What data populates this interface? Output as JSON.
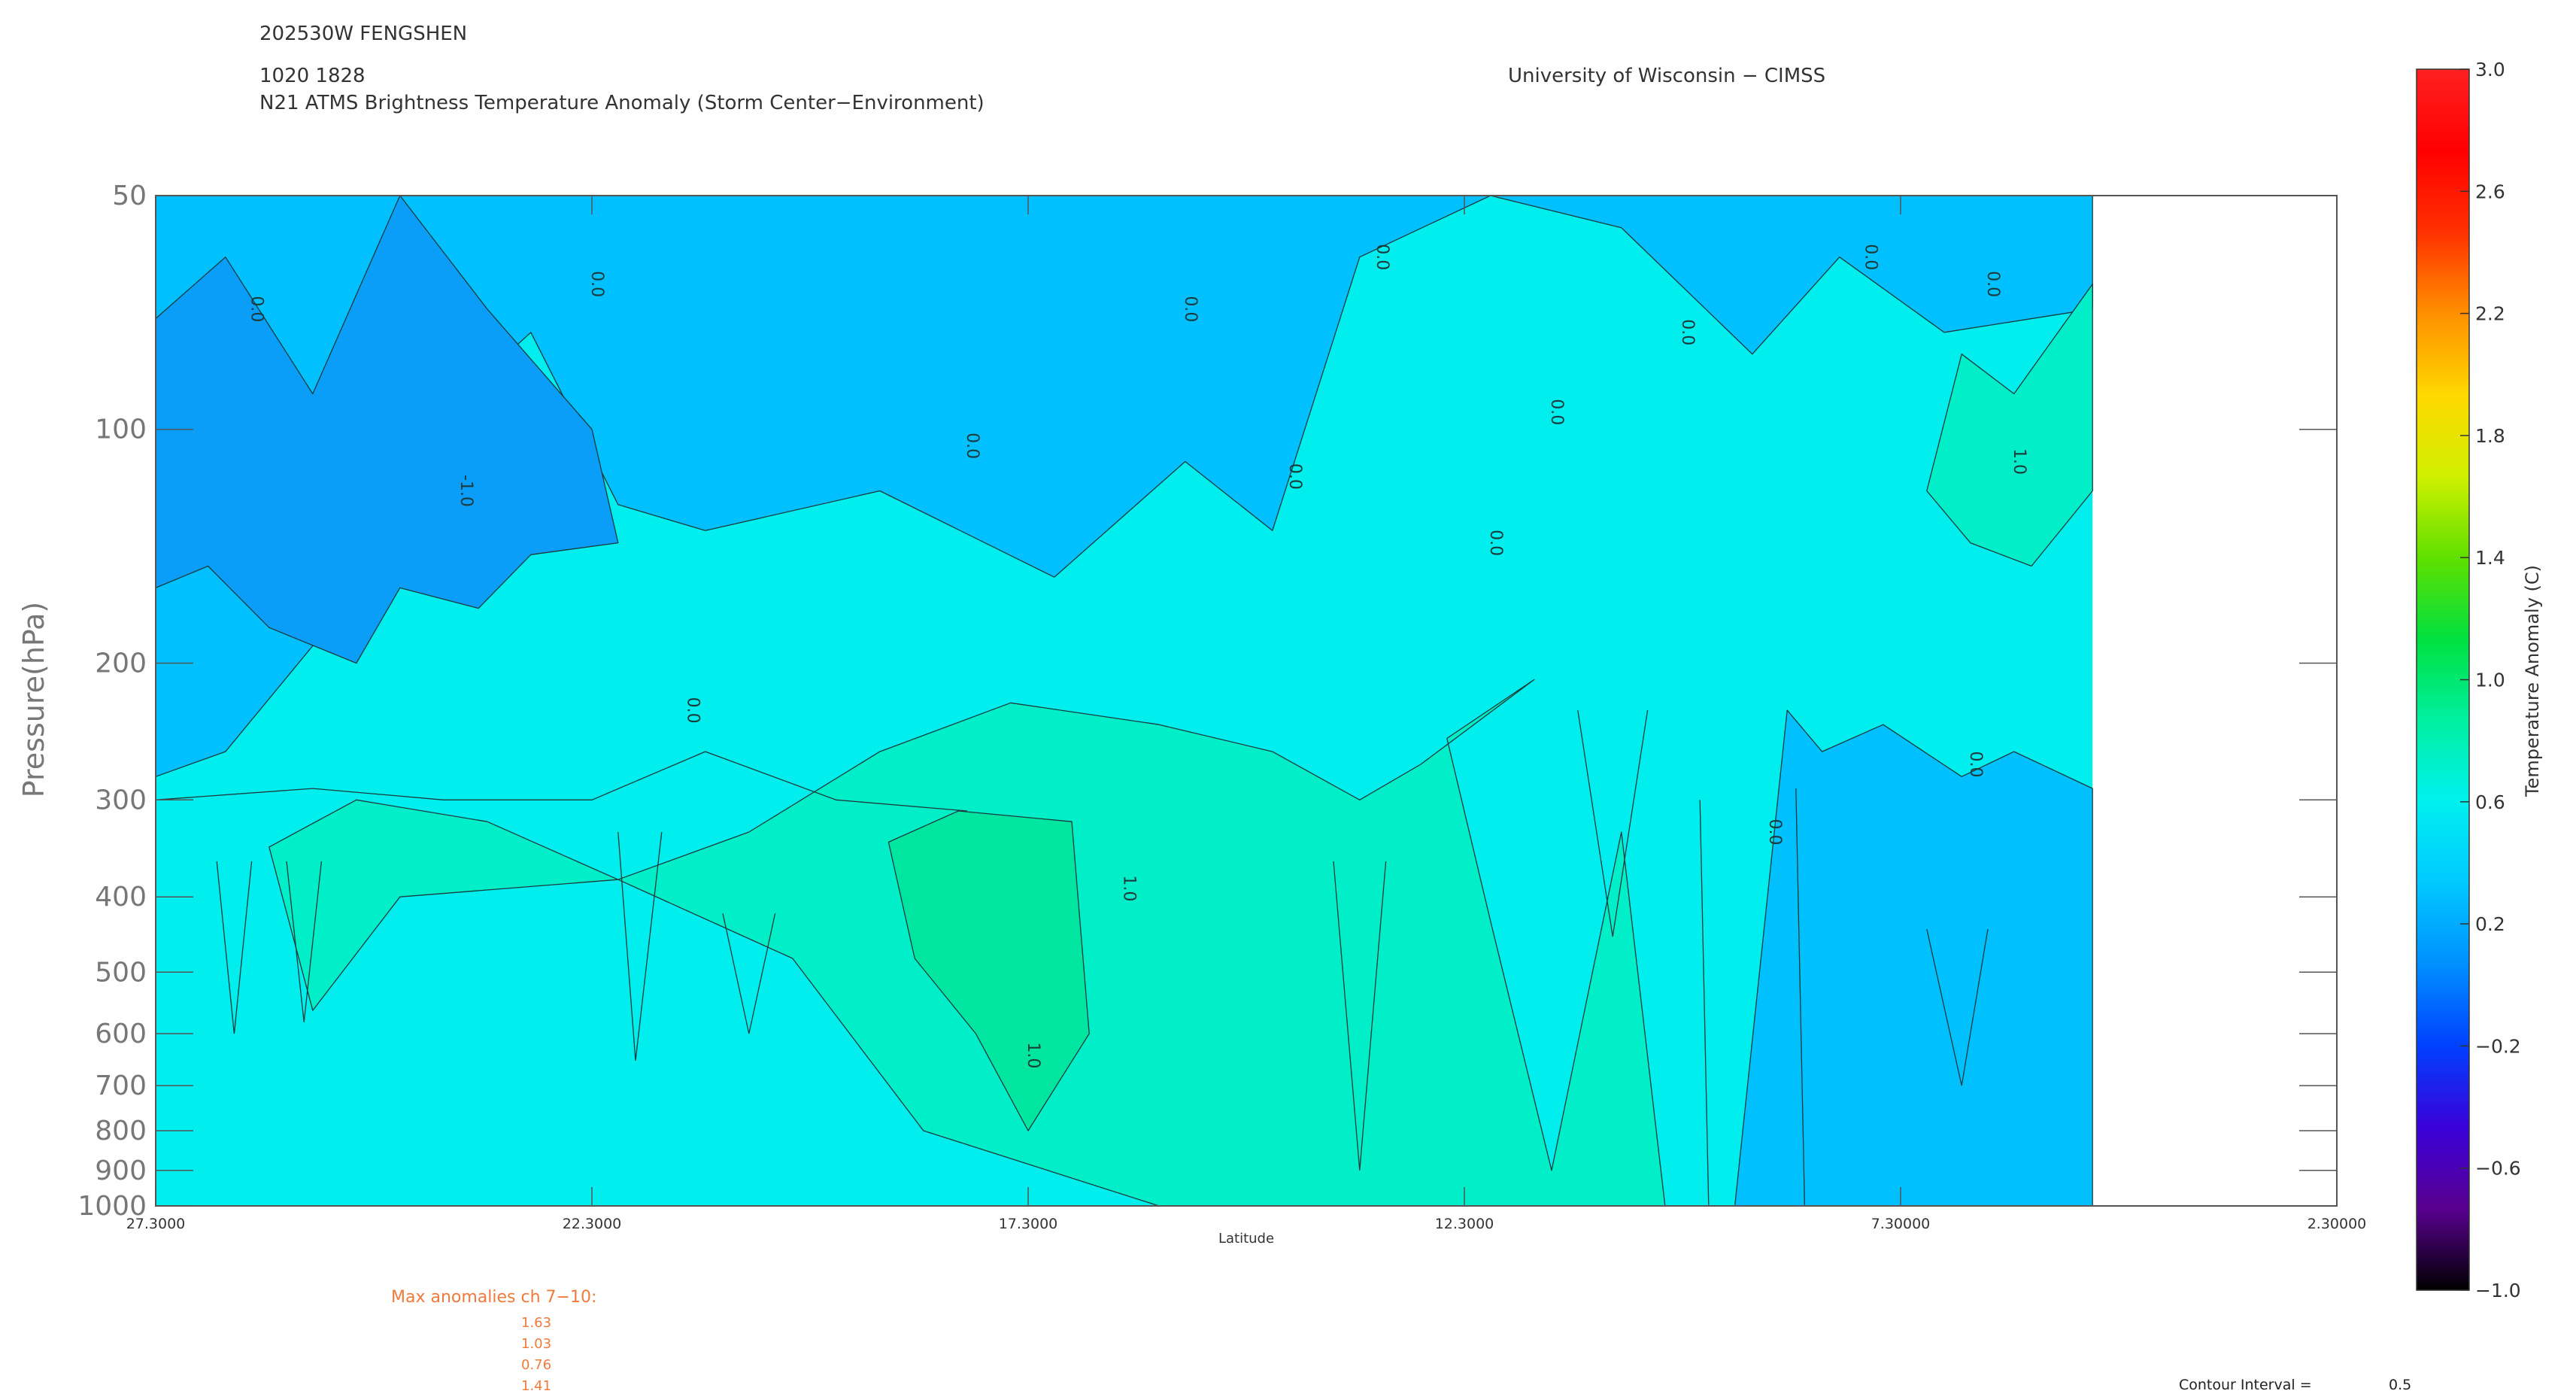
{
  "header": {
    "storm": "202530W FENGSHEN",
    "time": "1020 1828",
    "title": "N21 ATMS Brightness Temperature Anomaly (Storm Center−Environment)",
    "institution": "University of Wisconsin − CIMSS"
  },
  "chart_data": {
    "type": "heatmap",
    "xlabel": "Latitude",
    "ylabel": "Pressure(hPa)",
    "x_reversed": true,
    "xlim": [
      27.3,
      2.3
    ],
    "x_ticks": [
      "27.3000",
      "22.3000",
      "17.3000",
      "12.3000",
      "7.30000",
      "2.30000"
    ],
    "x_tick_values": [
      27.3,
      22.3,
      17.3,
      12.3,
      7.3,
      2.3
    ],
    "y_scale": "log",
    "ylim": [
      1000,
      50
    ],
    "y_ticks": [
      "50",
      "100",
      "200",
      "300",
      "400",
      "500",
      "600",
      "700",
      "800",
      "900",
      "1000"
    ],
    "y_tick_values": [
      50,
      100,
      200,
      300,
      400,
      500,
      600,
      700,
      800,
      900,
      1000
    ],
    "data_extent_lat": [
      27.3,
      5.1
    ],
    "contour_labels": [
      "0.0",
      "1.0",
      "-1.0"
    ],
    "colorbar": {
      "label": "Temperature Anomaly (C)",
      "range": [
        -1.0,
        3.0
      ],
      "ticks": [
        "3.0",
        "2.6",
        "2.2",
        "1.8",
        "1.4",
        "1.0",
        "0.6",
        "0.2",
        "−0.2",
        "−0.6",
        "−1.0"
      ],
      "tick_values": [
        3.0,
        2.6,
        2.2,
        1.8,
        1.4,
        1.0,
        0.6,
        0.2,
        -0.2,
        -0.6,
        -1.0
      ],
      "colors": [
        "#000000",
        "#5a0090",
        "#3a00d8",
        "#0040ff",
        "#0090ff",
        "#00c8ff",
        "#00f0f0",
        "#00f0a0",
        "#00e040",
        "#60e000",
        "#d0f000",
        "#ffd800",
        "#ff9000",
        "#ff3000",
        "#ff0000",
        "#ff2020"
      ]
    },
    "fill_colors": {
      "band_neg05_0": "#0a9ef8",
      "band_0_05": "#00c0ff",
      "band_05_1": "#00eeee",
      "band_1_15": "#00eec8",
      "band_15_2": "#00e6a0"
    }
  },
  "max_anomalies": {
    "title": "Max anomalies ch 7−10:",
    "values": [
      "1.63",
      "1.03",
      "0.76",
      "1.41"
    ]
  },
  "contour_interval": {
    "label": "Contour Interval =",
    "value": "0.5"
  }
}
